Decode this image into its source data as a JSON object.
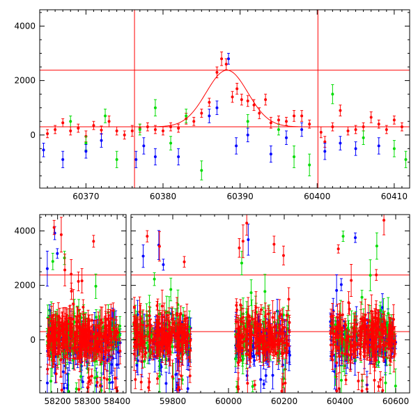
{
  "colors": {
    "red": "#ff0000",
    "green": "#00dd00",
    "blue": "#0000ff",
    "axis": "#000000"
  },
  "chart_data": [
    {
      "type": "scatter",
      "title": "",
      "xlabel": "",
      "ylabel": "",
      "xlim": [
        60364,
        60412
      ],
      "ylim": [
        -1950,
        4600
      ],
      "x_ticks": [
        60370,
        60380,
        60390,
        60400,
        60410
      ],
      "y_ticks": [
        0,
        2000,
        4000
      ],
      "hlines": [
        300,
        2380
      ],
      "vlines": [
        60376.3,
        60400.1
      ],
      "model_curve": {
        "baseline": 300,
        "amplitude": 2080,
        "center": 60388.3,
        "width": 2.7
      },
      "series": [
        {
          "color": "red",
          "points": [
            [
              60365,
              50,
              150
            ],
            [
              60366,
              200,
              150
            ],
            [
              60367,
              450,
              150
            ],
            [
              60368,
              150,
              150
            ],
            [
              60369,
              250,
              150
            ],
            [
              60370,
              -50,
              200
            ],
            [
              60371,
              350,
              150
            ],
            [
              60372,
              180,
              150
            ],
            [
              60373,
              500,
              200
            ],
            [
              60374,
              150,
              150
            ],
            [
              60375,
              0,
              150
            ],
            [
              60376,
              150,
              200
            ],
            [
              60377,
              250,
              150
            ],
            [
              60378,
              300,
              150
            ],
            [
              60379,
              200,
              150
            ],
            [
              60380,
              150,
              150
            ],
            [
              60381,
              300,
              150
            ],
            [
              60382,
              250,
              150
            ],
            [
              60383,
              600,
              200
            ],
            [
              60384,
              500,
              150
            ],
            [
              60385,
              800,
              150
            ],
            [
              60386,
              1200,
              150
            ],
            [
              60387,
              2300,
              200
            ],
            [
              60387.6,
              2800,
              250
            ],
            [
              60388.2,
              2600,
              200
            ],
            [
              60389,
              1400,
              200
            ],
            [
              60389.6,
              1700,
              200
            ],
            [
              60390.2,
              1300,
              200
            ],
            [
              60391,
              1250,
              200
            ],
            [
              60391.8,
              1100,
              200
            ],
            [
              60392.5,
              800,
              200
            ],
            [
              60393.3,
              1300,
              200
            ],
            [
              60394,
              450,
              200
            ],
            [
              60395,
              550,
              150
            ],
            [
              60396,
              500,
              150
            ],
            [
              60397,
              700,
              200
            ],
            [
              60398,
              700,
              200
            ],
            [
              60399,
              400,
              150
            ],
            [
              60400.5,
              100,
              200
            ],
            [
              60401,
              -250,
              200
            ],
            [
              60402,
              300,
              150
            ],
            [
              60403,
              900,
              200
            ],
            [
              60404,
              150,
              150
            ],
            [
              60405,
              200,
              150
            ],
            [
              60406,
              300,
              150
            ],
            [
              60407,
              650,
              200
            ],
            [
              60408,
              400,
              150
            ],
            [
              60409,
              200,
              150
            ],
            [
              60410,
              550,
              150
            ],
            [
              60411,
              300,
              150
            ]
          ]
        },
        {
          "color": "green",
          "points": [
            [
              60368,
              500,
              200
            ],
            [
              60370,
              -300,
              250
            ],
            [
              60372.5,
              700,
              250
            ],
            [
              60374,
              -900,
              300
            ],
            [
              60377,
              200,
              200
            ],
            [
              60379,
              1000,
              300
            ],
            [
              60381,
              -300,
              250
            ],
            [
              60383,
              700,
              250
            ],
            [
              60385,
              -1300,
              350
            ],
            [
              60391,
              500,
              250
            ],
            [
              60395,
              200,
              200
            ],
            [
              60397,
              -800,
              400
            ],
            [
              60399,
              -1100,
              400
            ],
            [
              60402,
              1500,
              350
            ],
            [
              60406,
              -100,
              250
            ],
            [
              60410,
              -500,
              300
            ],
            [
              60411.5,
              -900,
              300
            ]
          ]
        },
        {
          "color": "blue",
          "points": [
            [
              60364.5,
              -550,
              250
            ],
            [
              60367,
              -900,
              300
            ],
            [
              60370,
              -600,
              250
            ],
            [
              60372,
              -200,
              250
            ],
            [
              60376.5,
              -900,
              300
            ],
            [
              60377.5,
              -400,
              300
            ],
            [
              60379,
              -800,
              300
            ],
            [
              60382,
              -800,
              300
            ],
            [
              60386,
              700,
              250
            ],
            [
              60387,
              1000,
              250
            ],
            [
              60388.5,
              2800,
              200
            ],
            [
              60389.5,
              -400,
              300
            ],
            [
              60391,
              0,
              250
            ],
            [
              60394,
              -700,
              300
            ],
            [
              60396,
              -100,
              250
            ],
            [
              60398,
              200,
              250
            ],
            [
              60401,
              -600,
              300
            ],
            [
              60403,
              -300,
              250
            ],
            [
              60405,
              -500,
              250
            ],
            [
              60408,
              -400,
              300
            ]
          ]
        }
      ]
    },
    {
      "type": "scatter",
      "title": "",
      "xlabel": "",
      "ylabel": "",
      "broken_x_axis": true,
      "ylim": [
        -1950,
        4600
      ],
      "hlines": [
        300,
        2380
      ],
      "y_ticks": [
        0,
        2000,
        4000
      ],
      "segments": [
        {
          "xlim": [
            58140,
            58430
          ],
          "x_ticks": [
            58200,
            58300,
            58400
          ],
          "cluster_ranges": [
            [
              58165,
              58410
            ]
          ]
        },
        {
          "xlim": [
            59650,
            60650
          ],
          "x_ticks": [
            59800,
            60000,
            60200,
            60400,
            60600
          ],
          "cluster_ranges": [
            [
              59660,
              59865
            ],
            [
              60025,
              60220
            ],
            [
              60365,
              60600
            ]
          ]
        }
      ]
    }
  ]
}
